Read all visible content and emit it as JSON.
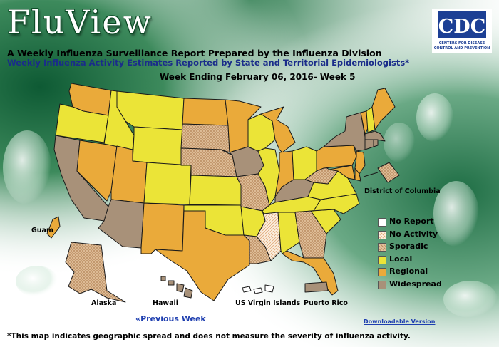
{
  "header": {
    "app_title": "FluView",
    "subtitle_line1": "A Weekly Influenza Surveillance Report Prepared by the Influenza Division",
    "subtitle_line2": "Weekly Influenza Activity Estimates Reported by State and Territorial Epidemiologists*",
    "week_heading": "Week Ending February 06, 2016- Week 5"
  },
  "logo": {
    "name": "CDC",
    "tagline_line1": "CENTERS FOR DISEASE",
    "tagline_line2": "CONTROL AND PREVENTION"
  },
  "map": {
    "labels": {
      "guam": "Guam",
      "alaska": "Alaska",
      "hawaii": "Hawaii",
      "usvi": "US Virgin Islands",
      "puerto_rico": "Puerto Rico",
      "dc": "District of Columbia"
    },
    "activity_colors": {
      "no_report": "#ffffff",
      "no_activity": "#f6d6b4",
      "sporadic": "#d8b48e",
      "local": "#ebe437",
      "regional": "#eaaa3a",
      "widespread": "#a89179"
    },
    "states": {
      "WA": "regional",
      "OR": "local",
      "CA": "widespread",
      "NV": "regional",
      "ID": "local",
      "MT": "local",
      "WY": "local",
      "UT": "regional",
      "AZ": "widespread",
      "CO": "local",
      "NM": "regional",
      "ND": "regional",
      "SD": "sporadic",
      "NE": "sporadic",
      "KS": "local",
      "OK": "local",
      "TX": "regional",
      "MN": "regional",
      "IA": "widespread",
      "MO": "sporadic",
      "AR": "local",
      "LA": "sporadic",
      "WI": "local",
      "IL": "local",
      "MS": "no_activity",
      "MI": "regional",
      "IN": "regional",
      "KY": "widespread",
      "TN": "local",
      "AL": "local",
      "OH": "local",
      "WV": "sporadic",
      "GA": "sporadic",
      "FL": "regional",
      "SC": "local",
      "NC": "local",
      "VA": "local",
      "PA": "regional",
      "NY": "widespread",
      "VT": "regional",
      "NH": "local",
      "ME": "regional",
      "MA": "widespread",
      "RI": "widespread",
      "CT": "widespread",
      "NJ": "regional",
      "DE": "regional",
      "MD": "regional",
      "DC": "sporadic",
      "AK": "sporadic",
      "HI": "widespread",
      "GU": "regional",
      "PR": "widespread",
      "VI": "no_report"
    }
  },
  "legend": {
    "items": [
      {
        "label": "No Report",
        "color": "#ffffff"
      },
      {
        "label": "No Activity",
        "color": "#f6d6b4"
      },
      {
        "label": "Sporadic",
        "color": "#d8b48e"
      },
      {
        "label": "Local",
        "color": "#ebe437"
      },
      {
        "label": "Regional",
        "color": "#eaaa3a"
      },
      {
        "label": "Widespread",
        "color": "#a89179"
      }
    ]
  },
  "links": {
    "previous_week": "«Previous Week",
    "downloadable": "Downloadable Version"
  },
  "footnote": "*This map indicates geographic spread and does not measure the severity of influenza activity."
}
